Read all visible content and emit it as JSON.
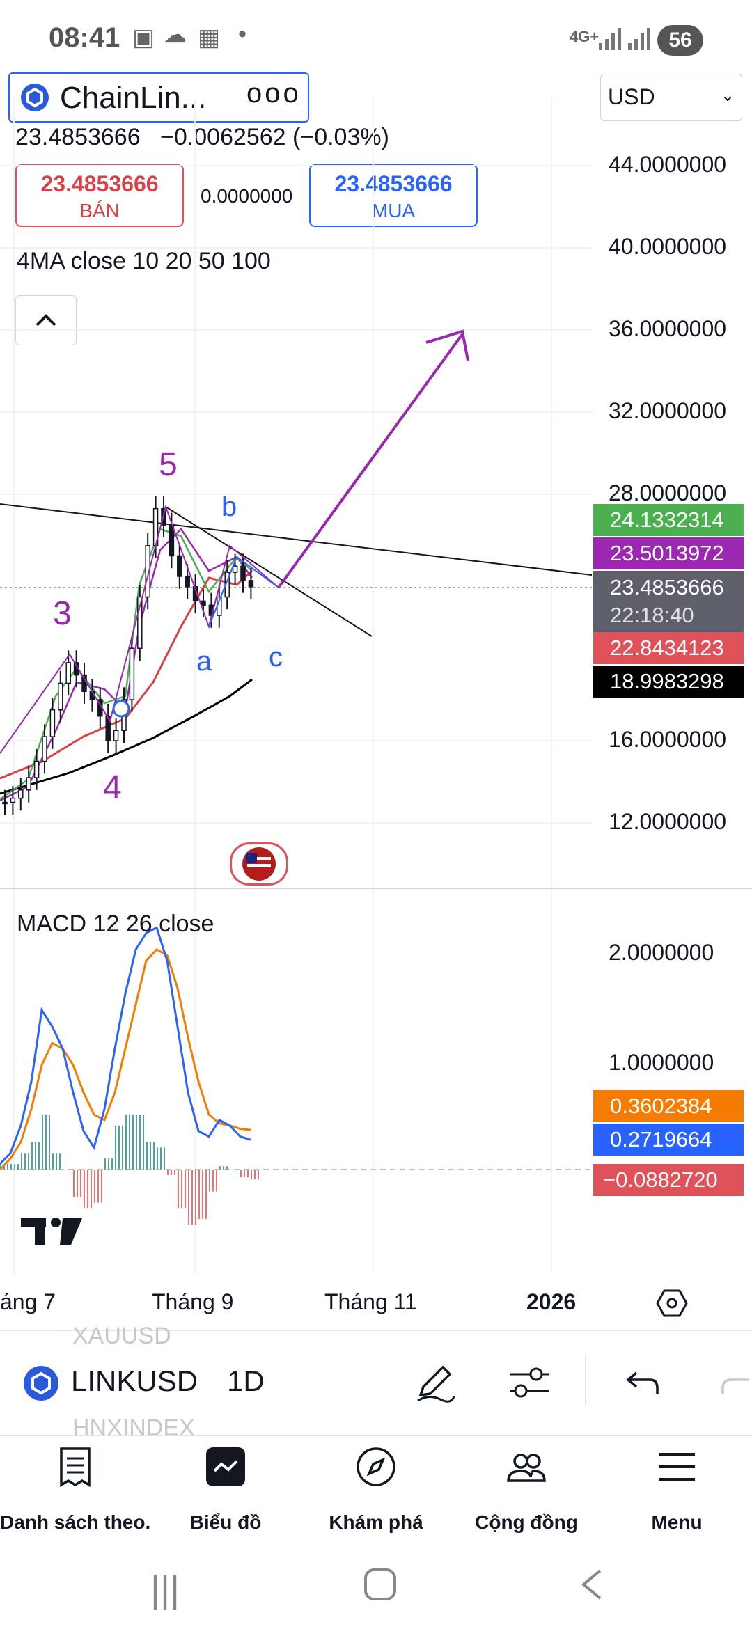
{
  "status_bar": {
    "time": "08:41",
    "network": "4G+",
    "battery": "56"
  },
  "header": {
    "symbol_short": "ChainLin...",
    "more": "ooo",
    "currency": "USD",
    "price": "23.4853666",
    "change": "−0.0062562",
    "change_pct": "(−0.03%)",
    "sell_price": "23.4853666",
    "sell_label": "BÁN",
    "spread": "0.0000000",
    "buy_price": "23.4853666",
    "buy_label": "MUA",
    "indicator_label": "4MA close 10 20 50 100"
  },
  "chart_data": [
    {
      "type": "line",
      "title": "",
      "y_axis_labels": [
        "44.0000000",
        "40.0000000",
        "36.0000000",
        "32.0000000",
        "28.0000000",
        "16.0000000",
        "12.0000000"
      ],
      "x_axis_labels": [
        "áng 7",
        "Tháng 9",
        "Tháng 11",
        "2026"
      ],
      "price_badges": [
        {
          "value": "24.1332314",
          "color": "#4caf50"
        },
        {
          "value": "23.5013972",
          "color": "#9c27b0"
        },
        {
          "value": "23.4853666",
          "sub": "22:18:40",
          "color": "#5d606b"
        },
        {
          "value": "22.8434123",
          "color": "#e0525a"
        },
        {
          "value": "18.9983298",
          "color": "#000000"
        }
      ],
      "wave_labels": [
        "5",
        "3",
        "4",
        "b",
        "a",
        "c"
      ],
      "close": [
        13,
        13.2,
        13.6,
        14.2,
        15.0,
        16.2,
        17.5,
        18.8,
        19.8,
        19.2,
        18.4,
        18.0,
        17.2,
        16.0,
        16.5,
        18.0,
        20.5,
        23,
        25.5,
        27.3,
        26.5,
        25,
        24,
        23.5,
        22.8,
        22.6,
        22.1,
        23.0,
        24.2,
        24.5,
        23.8,
        23.5
      ]
    },
    {
      "type": "line",
      "title": "MACD 12 26 close",
      "y_axis_labels": [
        "2.0000000",
        "1.0000000"
      ],
      "badges": [
        {
          "value": "0.3602384",
          "color": "#f57c00"
        },
        {
          "value": "0.2719664",
          "color": "#2962ff"
        },
        {
          "value": "−0.0882720",
          "color": "#e0525a"
        }
      ],
      "macd": [
        0.05,
        0.15,
        0.4,
        0.8,
        1.45,
        1.3,
        1.1,
        0.7,
        0.35,
        0.2,
        0.55,
        1.1,
        1.6,
        2.0,
        2.15,
        2.2,
        1.9,
        1.3,
        0.7,
        0.35,
        0.3,
        0.45,
        0.4,
        0.3,
        0.27
      ],
      "signal": [
        0.0,
        0.1,
        0.25,
        0.55,
        0.95,
        1.15,
        1.1,
        0.95,
        0.7,
        0.5,
        0.45,
        0.7,
        1.1,
        1.5,
        1.9,
        2.0,
        1.95,
        1.65,
        1.2,
        0.8,
        0.5,
        0.42,
        0.4,
        0.37,
        0.36
      ]
    }
  ],
  "toolbar": {
    "prev_symbol": "XAUUSD",
    "symbol": "LINKUSD",
    "interval": "1D",
    "next_symbol": "HNXINDEX"
  },
  "nav": [
    {
      "label": "Danh sách theo...",
      "icon": "watchlist-icon"
    },
    {
      "label": "Biểu đồ",
      "icon": "chart-icon"
    },
    {
      "label": "Khám phá",
      "icon": "compass-icon"
    },
    {
      "label": "Cộng đồng",
      "icon": "community-icon"
    },
    {
      "label": "Menu",
      "icon": "menu-icon"
    }
  ]
}
